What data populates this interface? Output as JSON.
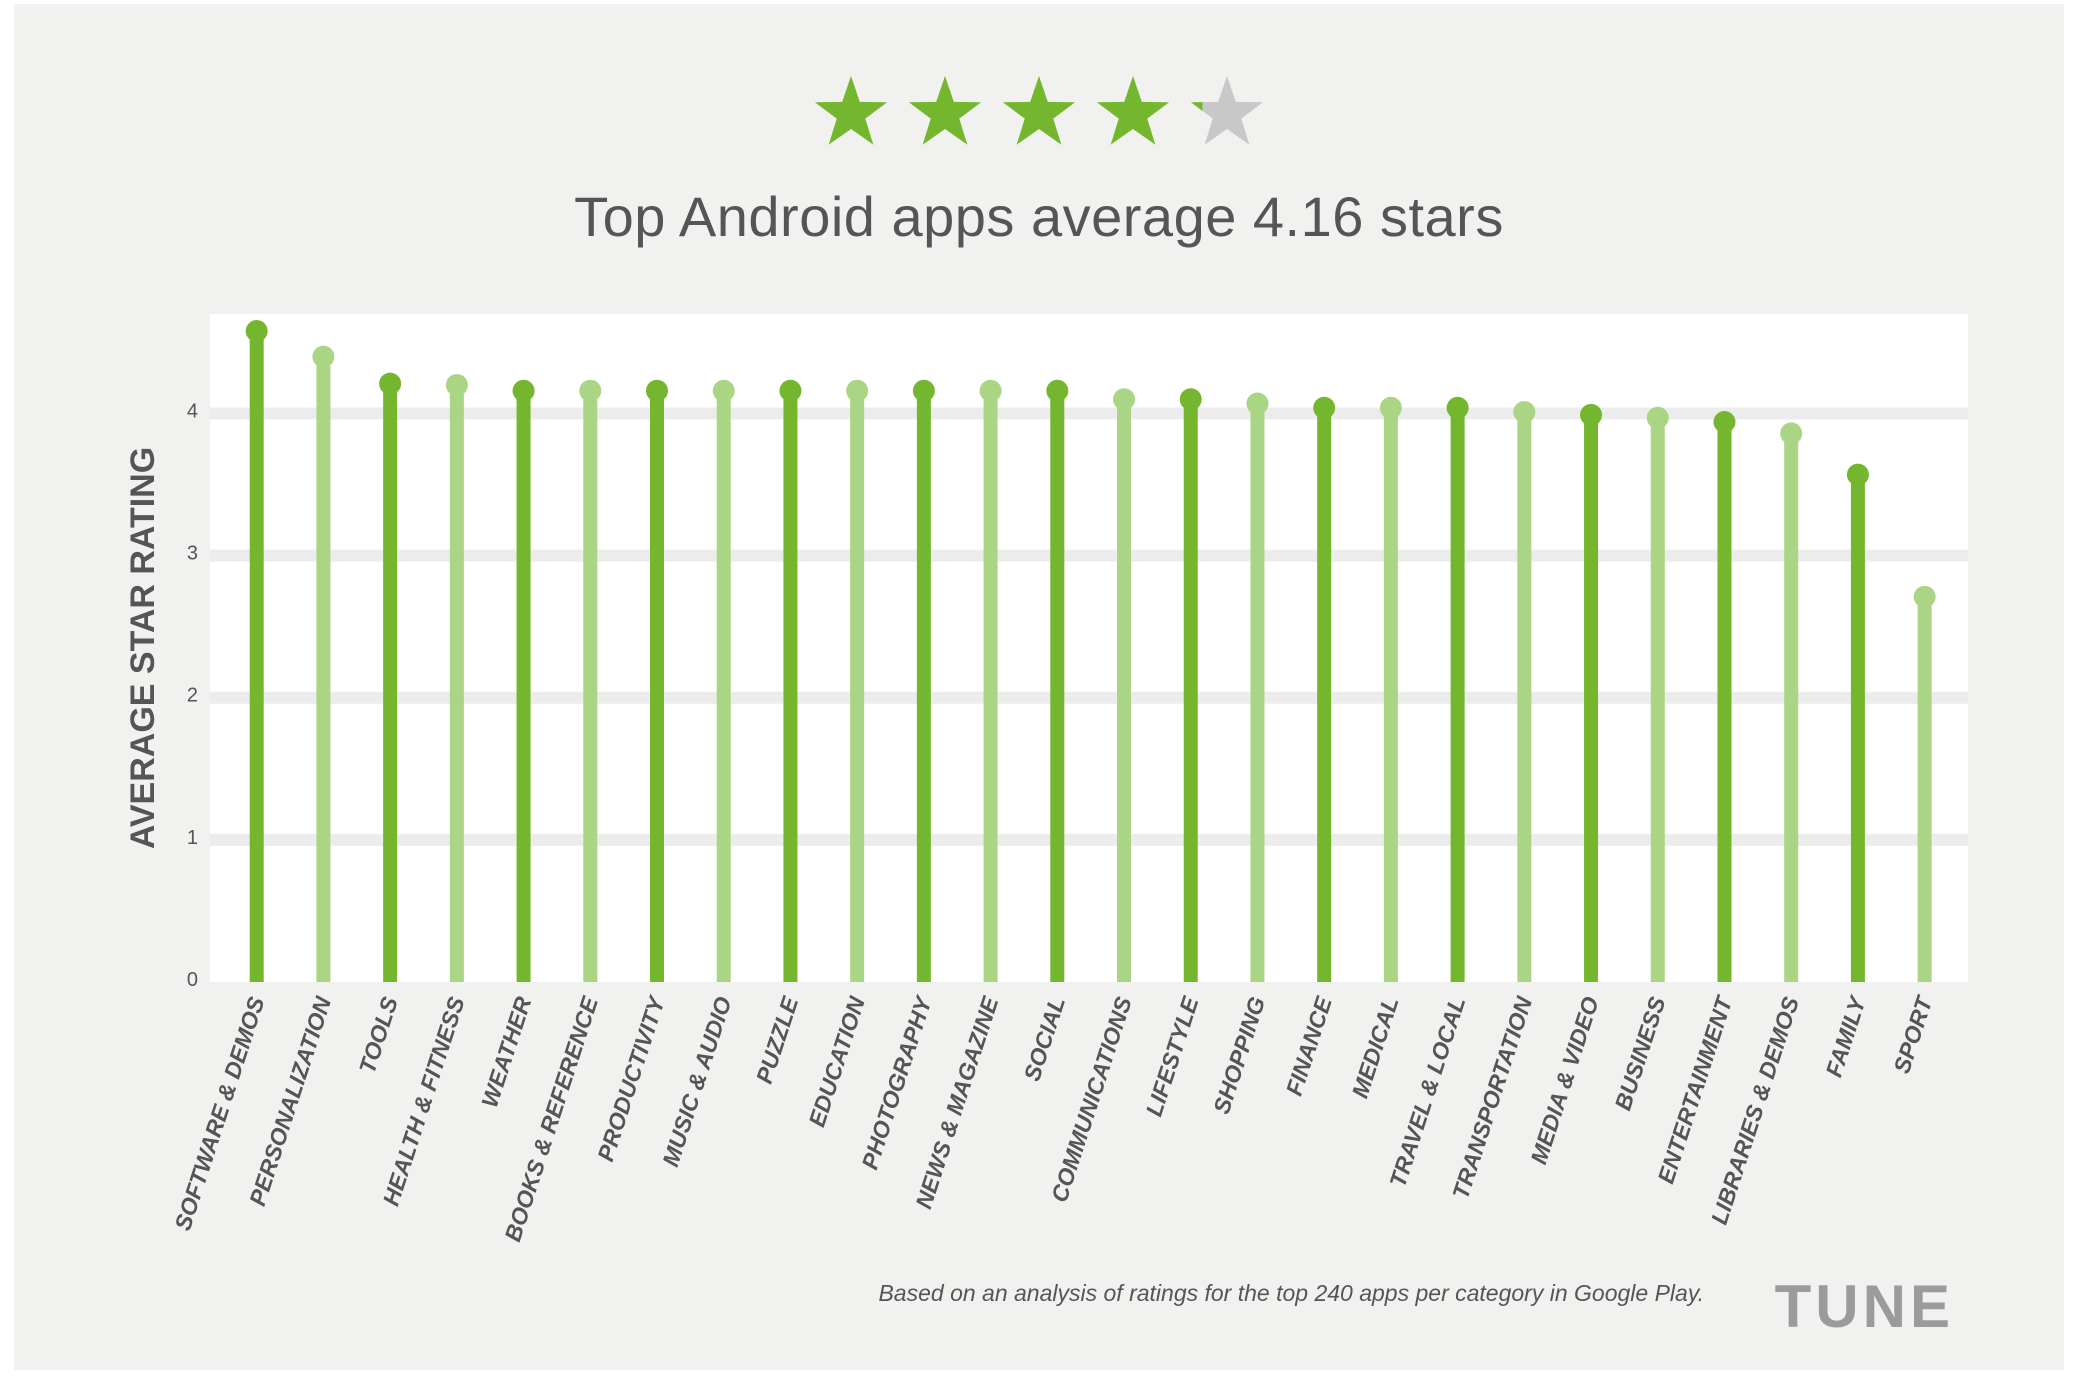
{
  "rating_display": {
    "filled_stars": 4,
    "partial_fill": 0.16,
    "total_stars": 5,
    "icon": "star-icon"
  },
  "colors": {
    "dark_green": "#74b72e",
    "light_green": "#a9d584",
    "star_green": "#74b72e",
    "star_gray": "#c8c8c8",
    "grid": "#ececec",
    "axis_text": "#555555"
  },
  "chart_data": {
    "type": "lollipop",
    "title": "Top Android apps average 4.16 stars",
    "ylabel": "AVERAGE STAR RATING",
    "xlabel": "",
    "ylim": [
      0,
      4.7
    ],
    "yticks": [
      0,
      1,
      2,
      3,
      4
    ],
    "grid": true,
    "categories": [
      "SOFTWARE & DEMOS",
      "PERSONALIZATION",
      "TOOLS",
      "HEALTH & FITNESS",
      "WEATHER",
      "BOOKS & REFERENCE",
      "PRODUCTIVITY",
      "MUSIC & AUDIO",
      "PUZZLE",
      "EDUCATION",
      "PHOTOGRAPHY",
      "NEWS & MAGAZINE",
      "SOCIAL",
      "COMMUNICATIONS",
      "LIFESTYLE",
      "SHOPPING",
      "FINANCE",
      "MEDICAL",
      "TRAVEL & LOCAL",
      "TRANSPORTATION",
      "MEDIA & VIDEO",
      "BUSINESS",
      "ENTERTAINMENT",
      "LIBRARIES & DEMOS",
      "FAMILY",
      "SPORT"
    ],
    "values": [
      4.58,
      4.4,
      4.21,
      4.2,
      4.16,
      4.16,
      4.16,
      4.16,
      4.16,
      4.16,
      4.16,
      4.16,
      4.16,
      4.1,
      4.1,
      4.07,
      4.04,
      4.04,
      4.04,
      4.01,
      3.99,
      3.97,
      3.94,
      3.86,
      3.57,
      2.71
    ]
  },
  "footnote": "Based on an analysis of ratings for the top 240 apps per category in Google Play.",
  "brand": "TUNE"
}
